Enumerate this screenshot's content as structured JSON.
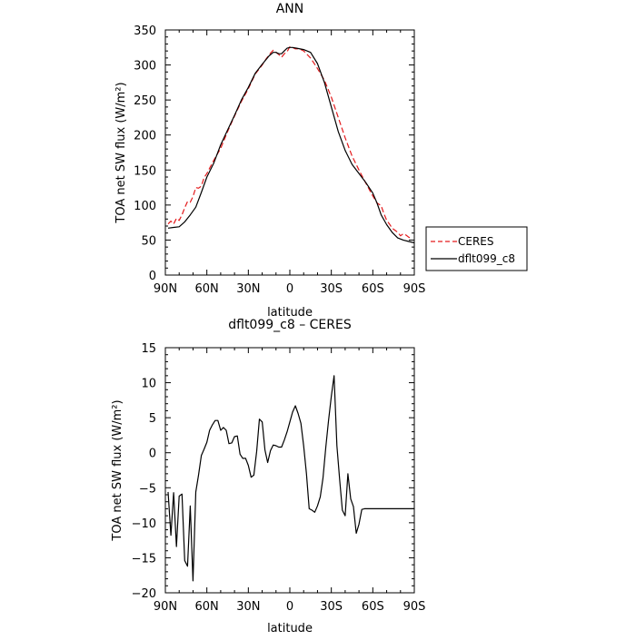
{
  "chart_data": [
    {
      "type": "line",
      "title": "ANN",
      "xlabel": "latitude",
      "ylabel": "TOA net SW flux (W/m²)",
      "xlim": [
        90,
        -90
      ],
      "ylim": [
        0,
        350
      ],
      "xticks": [
        90,
        60,
        30,
        0,
        -30,
        -60,
        -90
      ],
      "xtick_labels": [
        "90N",
        "60N",
        "30N",
        "0",
        "30S",
        "60S",
        "90S"
      ],
      "yticks": [
        0,
        50,
        100,
        150,
        200,
        250,
        300,
        350
      ],
      "ytick_labels": [
        "0",
        "50",
        "100",
        "150",
        "200",
        "250",
        "300",
        "350"
      ],
      "legend_position": "right",
      "series": [
        {
          "name": "CERES",
          "color": "#e41a1c",
          "dash": "dashed",
          "x": [
            88,
            86,
            84,
            82,
            80,
            78,
            76,
            74,
            72,
            70,
            68,
            66,
            64,
            62,
            60,
            55,
            50,
            45,
            40,
            35,
            30,
            25,
            20,
            17,
            14,
            12,
            10,
            8,
            6,
            4,
            2,
            0,
            -2,
            -4,
            -6,
            -8,
            -10,
            -15,
            -20,
            -25,
            -30,
            -35,
            -40,
            -45,
            -50,
            -55,
            -60,
            -63,
            -66,
            -68,
            -70,
            -72,
            -74,
            -76,
            -78,
            -80,
            -82,
            -84,
            -86,
            -88
          ],
          "y": [
            73,
            77,
            73,
            81,
            78,
            86,
            96,
            105,
            104,
            112,
            125,
            124,
            127,
            139,
            145,
            164,
            181,
            205,
            227,
            248,
            266,
            287,
            300,
            309,
            317,
            321,
            318,
            315,
            311,
            316,
            319,
            326,
            325,
            323,
            323,
            322,
            320,
            310,
            295,
            278,
            254,
            225,
            196,
            170,
            150,
            131,
            113,
            103,
            99,
            88,
            78,
            73,
            67,
            64,
            61,
            56,
            59,
            57,
            54,
            52
          ]
        },
        {
          "name": "dflt099_c8",
          "color": "#000000",
          "dash": "solid",
          "x": [
            88,
            84,
            80,
            76,
            72,
            68,
            64,
            60,
            55,
            50,
            45,
            40,
            35,
            30,
            25,
            20,
            15,
            12,
            10,
            8,
            6,
            4,
            2,
            0,
            -2,
            -5,
            -10,
            -15,
            -20,
            -25,
            -30,
            -35,
            -40,
            -45,
            -50,
            -55,
            -60,
            -63,
            -66,
            -70,
            -74,
            -78,
            -82,
            -86,
            -90
          ],
          "y": [
            67,
            68,
            69,
            76,
            86,
            97,
            118,
            140,
            160,
            186,
            207,
            228,
            250,
            268,
            288,
            301,
            313,
            318,
            318,
            316,
            316,
            320,
            324,
            325,
            325,
            324,
            322,
            318,
            302,
            275,
            240,
            205,
            178,
            158,
            145,
            132,
            117,
            103,
            86,
            72,
            61,
            53,
            50,
            48,
            46
          ]
        }
      ]
    },
    {
      "type": "line",
      "title": "dflt099_c8 – CERES",
      "xlabel": "latitude",
      "ylabel": "TOA net SW flux (W/m²)",
      "xlim": [
        90,
        -90
      ],
      "ylim": [
        -20,
        15
      ],
      "xticks": [
        90,
        60,
        30,
        0,
        -30,
        -60,
        -90
      ],
      "xtick_labels": [
        "90N",
        "60N",
        "30N",
        "0",
        "30S",
        "60S",
        "90S"
      ],
      "yticks": [
        -20,
        -15,
        -10,
        -5,
        0,
        5,
        10,
        15
      ],
      "ytick_labels": [
        "−20",
        "−15",
        "−10",
        "−5",
        "0",
        "5",
        "10",
        "15"
      ],
      "series": [
        {
          "color": "#000000",
          "dash": "solid",
          "x": [
            88,
            86,
            84,
            82,
            80,
            78,
            76,
            74,
            72,
            70,
            68,
            66,
            64,
            62,
            60,
            58,
            56,
            54,
            52,
            50,
            48,
            46,
            44,
            42,
            40,
            38,
            36,
            34,
            32,
            30,
            28,
            26,
            24,
            22,
            20,
            18,
            16,
            14,
            12,
            10,
            8,
            6,
            4,
            2,
            0,
            -2,
            -4,
            -6,
            -8,
            -10,
            -12,
            -14,
            -16,
            -18,
            -20,
            -22,
            -24,
            -26,
            -28,
            -30,
            -32,
            -34,
            -36,
            -38,
            -40,
            -42,
            -44,
            -46,
            -48,
            -50,
            -52,
            -54,
            -56,
            -58,
            -60,
            -62,
            -64,
            -66,
            -68,
            -70,
            -72,
            -74,
            -76,
            -78,
            -80,
            -82,
            -84,
            -86,
            -88,
            -90
          ],
          "y": [
            -5.6,
            -11.8,
            -5.7,
            -13.4,
            -6.2,
            -5.9,
            -15.4,
            -16.2,
            -7.6,
            -18.3,
            -5.6,
            -3.2,
            -0.4,
            0.5,
            1.5,
            3.2,
            4.0,
            4.6,
            4.6,
            3.2,
            3.6,
            3.2,
            1.3,
            1.4,
            2.3,
            2.4,
            -0.2,
            -0.8,
            -0.8,
            -1.8,
            -3.5,
            -3.2,
            0.2,
            4.8,
            4.4,
            0.4,
            -1.4,
            0.3,
            1.1,
            1.0,
            0.8,
            0.8,
            1.8,
            3.0,
            4.4,
            5.8,
            6.7,
            5.6,
            4.2,
            1.0,
            -3.0,
            -8.0,
            -8.2,
            -8.5,
            -7.6,
            -6.3,
            -3.6,
            0.8,
            4.6,
            8.1,
            11.0,
            1.0,
            -3.8,
            -8.2,
            -9.0,
            -3.0,
            -6.6,
            -7.7,
            -11.5,
            -10.2,
            -8.1,
            -8.0,
            -8.0,
            -8.0,
            -8.0,
            -8.0,
            -8.0,
            -8.0,
            -8.0,
            -8.0,
            -8.0,
            -8.0,
            -8.0,
            -8.0,
            -8.0,
            -8.0,
            -8.0,
            -8.0,
            -8.0,
            -8.0
          ]
        }
      ]
    }
  ]
}
